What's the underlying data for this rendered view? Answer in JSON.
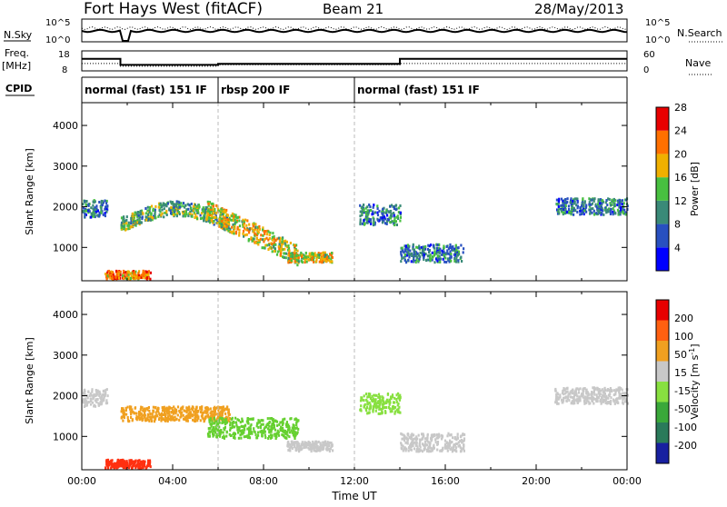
{
  "header": {
    "site_title": "Fort Hays West (fitACF)",
    "beam": "Beam 21",
    "date": "28/May/2013"
  },
  "strip_panels": {
    "nsky_label": "N.Sky",
    "nsearch_label": "N.Search",
    "noise_ticks_left": [
      "10^5",
      "10^0"
    ],
    "noise_ticks_right": [
      "10^5",
      "10^0"
    ],
    "freq_label": "Freq.",
    "freq_unit": "[MHz]",
    "freq_ticks": [
      "18",
      "8"
    ],
    "nave_label": "Nave",
    "nave_ticks": [
      "60",
      "0"
    ],
    "cpid_label": "CPID",
    "cpid_segments": [
      {
        "label": "normal (fast) 151 IF",
        "start_hour": 0,
        "end_hour": 6
      },
      {
        "label": "rbsp 200 IF",
        "start_hour": 6,
        "end_hour": 12
      },
      {
        "label": "normal (fast) 151 IF",
        "start_hour": 12,
        "end_hour": 24
      }
    ],
    "freq_trace": [
      [
        0,
        14
      ],
      [
        1.7,
        14
      ],
      [
        1.7,
        11
      ],
      [
        6,
        11
      ],
      [
        6,
        11.5
      ],
      [
        14,
        11.5
      ],
      [
        14,
        14
      ],
      [
        24,
        14
      ]
    ],
    "nave_trace": [
      [
        0,
        22
      ],
      [
        1.7,
        22
      ],
      [
        1.7,
        14
      ],
      [
        6,
        14
      ],
      [
        6,
        18
      ],
      [
        14,
        18
      ],
      [
        14,
        22
      ],
      [
        24,
        22
      ]
    ]
  },
  "chart_data": [
    {
      "type": "heatmap",
      "name": "power-panel",
      "ylabel": "Slant Range [km]",
      "xlim": [
        0,
        24
      ],
      "ylim": [
        180,
        4560
      ],
      "yticks": [
        "1000",
        "2000",
        "3000",
        "4000"
      ],
      "ytick_values": [
        1000,
        2000,
        3000,
        4000
      ],
      "colorbar": {
        "label": "Power [dB]",
        "tick_labels": [
          "4",
          "8",
          "12",
          "16",
          "20",
          "24",
          "28"
        ],
        "colors": [
          "#0000ff",
          "#2850c0",
          "#3a8a78",
          "#48c040",
          "#f0b000",
          "#ff7000",
          "#e80000"
        ],
        "range": [
          0,
          32
        ]
      },
      "scatter_regions": [
        {
          "start_hour": 0.0,
          "end_hour": 1.1,
          "center_km": 1950,
          "spread_km": 220,
          "level": 2
        },
        {
          "start_hour": 1.7,
          "end_hour": 6.5,
          "center_km": 1550,
          "spread_km": 180,
          "level": 3,
          "arc_peak_km": 1950
        },
        {
          "start_hour": 5.5,
          "end_hour": 9.5,
          "center_km": 1200,
          "spread_km": 250,
          "level": 4,
          "descending_to_km": 800
        },
        {
          "start_hour": 9.0,
          "end_hour": 11.0,
          "center_km": 750,
          "spread_km": 120,
          "level": 4
        },
        {
          "start_hour": 12.2,
          "end_hour": 14.0,
          "center_km": 1800,
          "spread_km": 250,
          "level": 2
        },
        {
          "start_hour": 14.0,
          "end_hour": 16.8,
          "center_km": 850,
          "spread_km": 220,
          "level": 2
        },
        {
          "start_hour": 20.8,
          "end_hour": 24.0,
          "center_km": 2000,
          "spread_km": 200,
          "level": 2
        },
        {
          "start_hour": 1.0,
          "end_hour": 3.0,
          "center_km": 320,
          "spread_km": 100,
          "level": 5
        }
      ]
    },
    {
      "type": "heatmap",
      "name": "velocity-panel",
      "ylabel": "Slant Range [km]",
      "xlabel": "Time UT",
      "xlim": [
        0,
        24
      ],
      "ylim": [
        180,
        4560
      ],
      "yticks": [
        "1000",
        "2000",
        "3000",
        "4000"
      ],
      "ytick_values": [
        1000,
        2000,
        3000,
        4000
      ],
      "xticks": [
        "00:00",
        "04:00",
        "08:00",
        "12:00",
        "16:00",
        "20:00",
        "00:00"
      ],
      "xtick_values": [
        0,
        4,
        8,
        12,
        16,
        20,
        24
      ],
      "colorbar": {
        "label_main": "Velocity [m s",
        "label_exp": "-1",
        "label_close": "]",
        "tick_labels": [
          "200",
          "100",
          "50",
          "15",
          "-15",
          "-50",
          "-100",
          "-200"
        ],
        "colors": [
          "#1820a0",
          "#2a7a5a",
          "#3aa83a",
          "#88e040",
          "#c8c8c8",
          "#f0a020",
          "#ff6010",
          "#e80000"
        ]
      },
      "scatter_regions": [
        {
          "start_hour": 0.0,
          "end_hour": 1.1,
          "center_km": 1950,
          "spread_km": 220,
          "color": "#c8c8c8"
        },
        {
          "start_hour": 1.7,
          "end_hour": 6.5,
          "center_km": 1550,
          "spread_km": 180,
          "color": "#f0a020"
        },
        {
          "start_hour": 5.5,
          "end_hour": 9.5,
          "center_km": 1200,
          "spread_km": 250,
          "color": "#66d030"
        },
        {
          "start_hour": 9.0,
          "end_hour": 11.0,
          "center_km": 750,
          "spread_km": 120,
          "color": "#c8c8c8"
        },
        {
          "start_hour": 12.2,
          "end_hour": 14.0,
          "center_km": 1800,
          "spread_km": 250,
          "color": "#88e040"
        },
        {
          "start_hour": 14.0,
          "end_hour": 16.8,
          "center_km": 850,
          "spread_km": 220,
          "color": "#c8c8c8"
        },
        {
          "start_hour": 20.8,
          "end_hour": 24.0,
          "center_km": 2000,
          "spread_km": 200,
          "color": "#c8c8c8"
        },
        {
          "start_hour": 1.0,
          "end_hour": 3.0,
          "center_km": 320,
          "spread_km": 100,
          "color": "#ff3010"
        }
      ]
    }
  ]
}
